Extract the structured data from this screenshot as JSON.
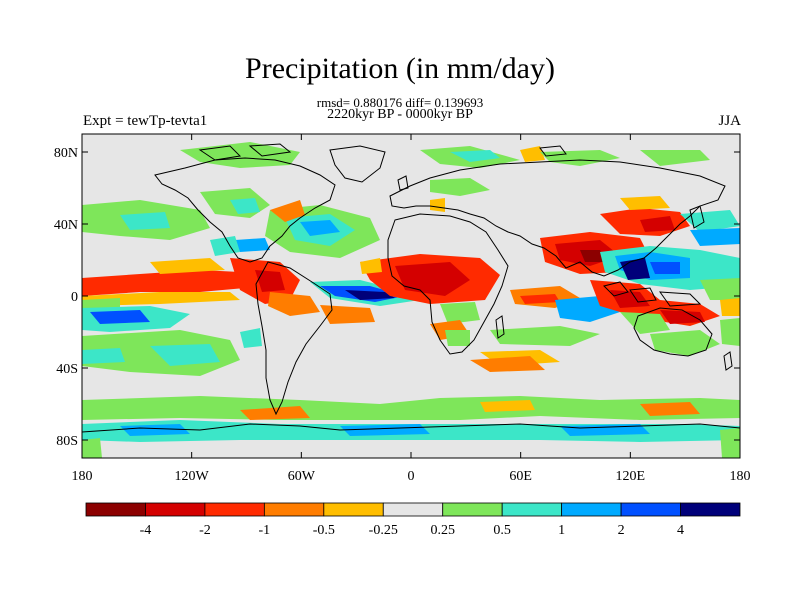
{
  "header": {
    "title": "Precipitation (in mm/day)",
    "stats": "rmsd= 0.880176 diff= 0.139693",
    "subtitle": "2220kyr BP - 0000kyr BP",
    "experiment": "Expt = tewTp-tevta1",
    "season": "JJA"
  },
  "map": {
    "lon_ticks": [
      "180",
      "120W",
      "60W",
      "0",
      "60E",
      "120E",
      "180"
    ],
    "lat_ticks": [
      "80N",
      "40N",
      "0",
      "40S",
      "80S"
    ],
    "background_color": "#e6e6e6"
  },
  "colorbar": {
    "labels": [
      "-4",
      "-2",
      "-1",
      "-0.5",
      "-0.25",
      "0.25",
      "0.5",
      "1",
      "2",
      "4"
    ],
    "colors": [
      "#8c0000",
      "#d40000",
      "#ff2a00",
      "#ff7d00",
      "#ffbe00",
      "#e6e6e6",
      "#7ee65a",
      "#3ce6c8",
      "#00aaff",
      "#0050ff",
      "#00007a"
    ]
  }
}
